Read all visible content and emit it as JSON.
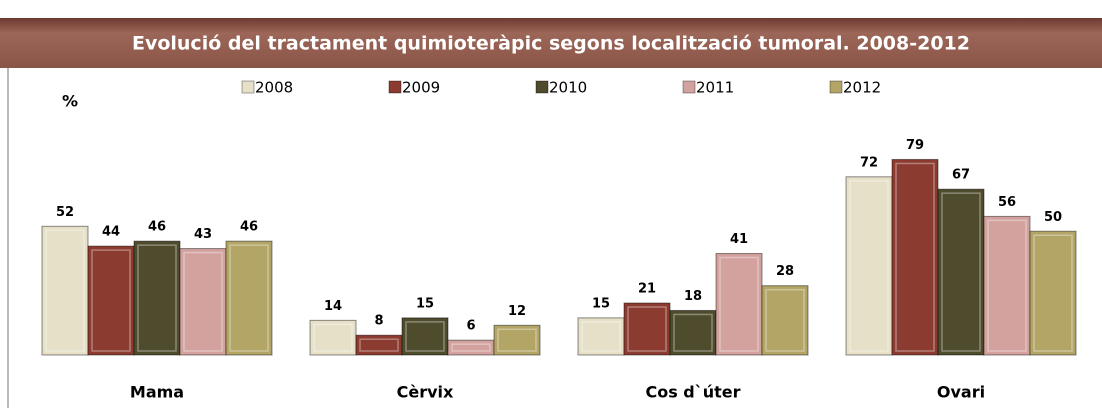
{
  "chart_data": {
    "type": "bar",
    "title": "Evolució del tractament quimioteràpic segons localització tumoral. 2008-2012",
    "y_label": "%",
    "categories": [
      "Mama",
      "Cèrvix",
      "Cos d`úter",
      "Ovari"
    ],
    "series": [
      {
        "name": "2008",
        "color": "#e6e0c8",
        "values": [
          52,
          14,
          15,
          72
        ]
      },
      {
        "name": "2009",
        "color": "#8c3b31",
        "values": [
          44,
          8,
          21,
          79
        ]
      },
      {
        "name": "2010",
        "color": "#4f4b2d",
        "values": [
          46,
          15,
          18,
          67
        ]
      },
      {
        "name": "2011",
        "color": "#d3a29e",
        "values": [
          43,
          6,
          41,
          56
        ]
      },
      {
        "name": "2012",
        "color": "#b3a566",
        "values": [
          46,
          12,
          28,
          50
        ]
      }
    ],
    "ylim": [
      0,
      80
    ]
  }
}
